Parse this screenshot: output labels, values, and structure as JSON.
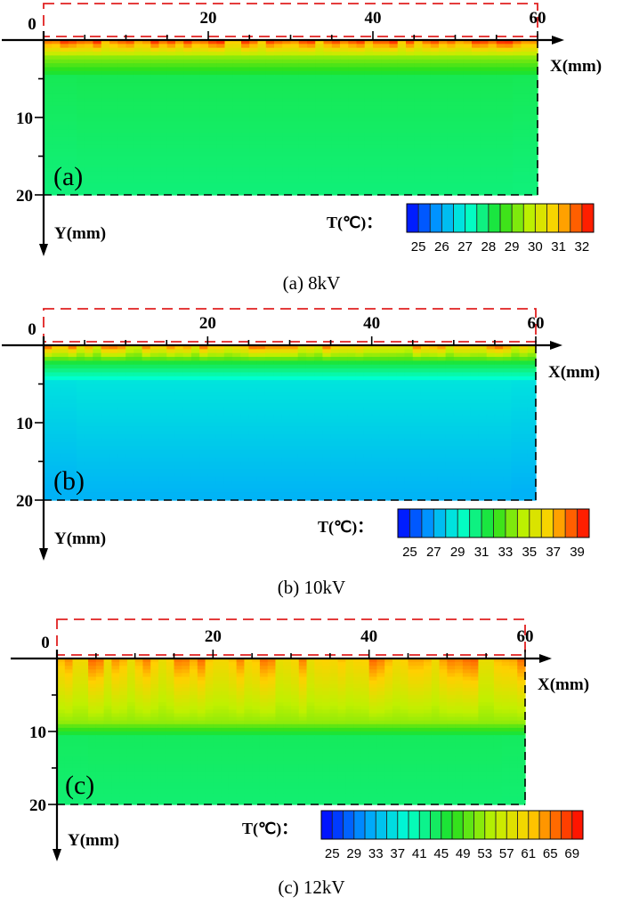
{
  "chart_data": [
    {
      "type": "heatmap",
      "panel": "(a)",
      "caption": "(a) 8kV",
      "xlabel": "X(mm)",
      "ylabel": "Y(mm)",
      "xlim": [
        0,
        60
      ],
      "ylim": [
        0,
        20
      ],
      "x_ticks": [
        0,
        20,
        40,
        60
      ],
      "y_ticks": [
        10,
        20
      ],
      "colorbar_title": "T(℃)：",
      "colorbar_ticks": [
        "25",
        "26",
        "27",
        "28",
        "29",
        "30",
        "31",
        "32"
      ],
      "colorbar_range": [
        25,
        32
      ],
      "surface_peak_value": 32,
      "hot_layer_depth_mm": 2,
      "bulk_value": 28.2,
      "bottom_value": 27.9
    },
    {
      "type": "heatmap",
      "panel": "(b)",
      "caption": "(b) 10kV",
      "xlabel": "X(mm)",
      "ylabel": "Y(mm)",
      "xlim": [
        0,
        60
      ],
      "ylim": [
        0,
        20
      ],
      "x_ticks": [
        0,
        20,
        40,
        60
      ],
      "y_ticks": [
        10,
        20
      ],
      "colorbar_title": "T(℃)：",
      "colorbar_ticks": [
        "25",
        "27",
        "29",
        "31",
        "33",
        "35",
        "37",
        "39"
      ],
      "colorbar_range": [
        25,
        40
      ],
      "surface_peak_value": 39,
      "hot_layer_depth_mm": 2,
      "bulk_value": 29.5,
      "bottom_value": 28
    },
    {
      "type": "heatmap",
      "panel": "(c)",
      "caption": "(c) 12kV",
      "xlabel": "X(mm)",
      "ylabel": "Y(mm)",
      "xlim": [
        0,
        60
      ],
      "ylim": [
        0,
        20
      ],
      "x_ticks": [
        0,
        20,
        40,
        60
      ],
      "y_ticks": [
        10,
        20
      ],
      "colorbar_title": "T(℃)：",
      "colorbar_ticks": [
        "25",
        "29",
        "33",
        "37",
        "41",
        "45",
        "49",
        "53",
        "57",
        "61",
        "65",
        "69"
      ],
      "colorbar_range": [
        25,
        70
      ],
      "surface_peak_value": 66,
      "hot_layer_depth_mm": 9,
      "bulk_value": 45,
      "bottom_value": 44
    }
  ]
}
